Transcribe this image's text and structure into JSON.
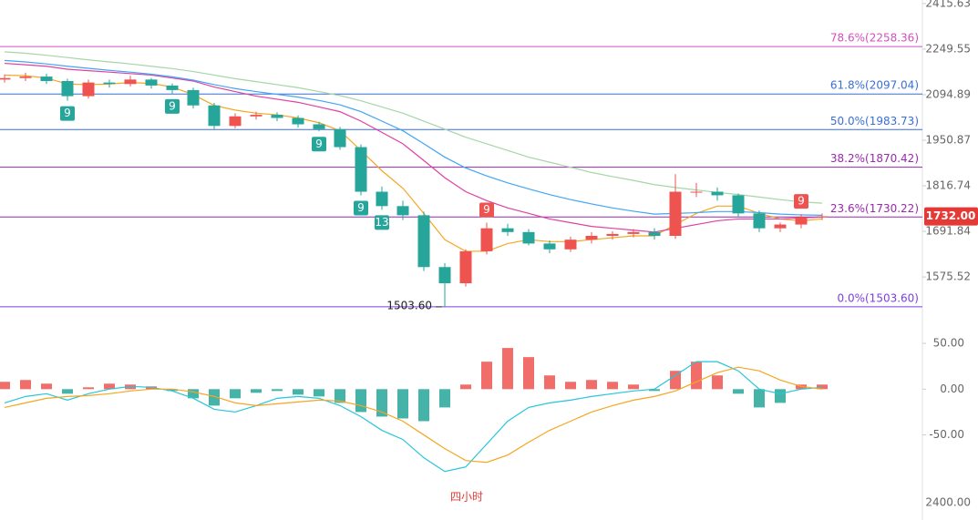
{
  "chart_data": [
    {
      "type": "candlestick",
      "log_scale": true,
      "ylim": [
        1455,
        2429
      ],
      "yticks": [
        2415.63,
        2249.55,
        2094.89,
        1950.87,
        1816.74,
        1691.84,
        1575.52
      ],
      "up_color": "#ef5350",
      "down_color": "#26a69a",
      "open": [
        2145,
        2150,
        2155,
        2140,
        2090,
        2135,
        2130,
        2145,
        2125,
        2110,
        2060,
        1995,
        2025,
        2030,
        2020,
        2000,
        1985,
        1930,
        1800,
        1760,
        1735,
        1600,
        1560,
        1640,
        1700,
        1690,
        1660,
        1645,
        1670,
        1680,
        1685,
        1690,
        1680,
        1800,
        1800,
        1790,
        1740,
        1700,
        1710,
        1730
      ],
      "high": [
        2162,
        2168,
        2165,
        2148,
        2145,
        2145,
        2158,
        2150,
        2132,
        2118,
        2068,
        2035,
        2040,
        2038,
        2028,
        2008,
        1992,
        1938,
        1815,
        1775,
        1745,
        1610,
        1645,
        1715,
        1712,
        1698,
        1668,
        1678,
        1690,
        1692,
        1698,
        1700,
        1850,
        1825,
        1812,
        1795,
        1748,
        1715,
        1738,
        1740
      ],
      "low": [
        2135,
        2140,
        2130,
        2075,
        2082,
        2118,
        2122,
        2115,
        2098,
        2050,
        1985,
        1988,
        2015,
        2010,
        1990,
        1978,
        1922,
        1790,
        1750,
        1722,
        1590,
        1503.6,
        1552,
        1632,
        1680,
        1655,
        1635,
        1638,
        1660,
        1670,
        1676,
        1670,
        1672,
        1785,
        1775,
        1730,
        1690,
        1690,
        1700,
        1722
      ],
      "close": [
        2150,
        2155,
        2140,
        2090,
        2135,
        2130,
        2145,
        2125,
        2110,
        2060,
        1995,
        2025,
        2030,
        2020,
        2000,
        1985,
        1930,
        1800,
        1760,
        1735,
        1600,
        1560,
        1640,
        1700,
        1690,
        1660,
        1645,
        1670,
        1680,
        1685,
        1690,
        1680,
        1800,
        1800,
        1790,
        1740,
        1700,
        1710,
        1730,
        1732
      ],
      "series": [
        {
          "color": "#f5a623",
          "values": [
            2160,
            2158,
            2150,
            2130,
            2128,
            2130,
            2135,
            2132,
            2120,
            2095,
            2060,
            2045,
            2035,
            2030,
            2020,
            2005,
            1980,
            1920,
            1860,
            1810,
            1740,
            1670,
            1640,
            1640,
            1660,
            1670,
            1665,
            1665,
            1670,
            1675,
            1680,
            1680,
            1710,
            1740,
            1760,
            1760,
            1740,
            1725,
            1720,
            1725
          ]
        },
        {
          "color": "#e040a0",
          "values": [
            2200,
            2195,
            2190,
            2180,
            2175,
            2170,
            2165,
            2160,
            2150,
            2140,
            2120,
            2105,
            2090,
            2080,
            2070,
            2055,
            2040,
            2010,
            1975,
            1940,
            1890,
            1840,
            1800,
            1775,
            1755,
            1740,
            1725,
            1715,
            1705,
            1700,
            1695,
            1690,
            1700,
            1710,
            1720,
            1725,
            1725,
            1725,
            1728,
            1730
          ]
        },
        {
          "color": "#42a5f5",
          "values": [
            2210,
            2205,
            2198,
            2190,
            2183,
            2176,
            2170,
            2163,
            2154,
            2143,
            2128,
            2115,
            2105,
            2096,
            2087,
            2076,
            2062,
            2040,
            2010,
            1980,
            1940,
            1900,
            1868,
            1845,
            1825,
            1808,
            1792,
            1778,
            1766,
            1755,
            1746,
            1738,
            1740,
            1742,
            1745,
            1745,
            1742,
            1738,
            1736,
            1735
          ]
        },
        {
          "color": "#a5d6a7",
          "values": [
            2240,
            2235,
            2228,
            2220,
            2212,
            2205,
            2198,
            2190,
            2182,
            2172,
            2160,
            2148,
            2138,
            2128,
            2118,
            2105,
            2092,
            2075,
            2055,
            2035,
            2010,
            1985,
            1960,
            1940,
            1920,
            1900,
            1885,
            1870,
            1855,
            1843,
            1832,
            1820,
            1812,
            1805,
            1798,
            1792,
            1785,
            1778,
            1772,
            1768
          ]
        }
      ],
      "fib_levels": [
        {
          "label": "78.6%(2258.36)",
          "value": 2258.36,
          "color": "#d050c0"
        },
        {
          "label": "61.8%(2097.04)",
          "value": 2097.04,
          "color": "#3a6fd8"
        },
        {
          "label": "50.0%(1983.73)",
          "value": 1983.73,
          "color": "#3a6fd8"
        },
        {
          "label": "38.2%(1870.42)",
          "value": 1870.42,
          "color": "#9c27b0"
        },
        {
          "label": "23.6%(1730.22)",
          "value": 1730.22,
          "color": "#9c27b0"
        },
        {
          "label": "0.0%(1503.60)",
          "value": 1503.6,
          "color": "#7b3fe0"
        }
      ],
      "last_price": {
        "value": 1732,
        "label": "1732.00"
      },
      "low_marker": {
        "value": 1503.6,
        "label": "1503.60"
      },
      "td_labels": [
        "9",
        "9",
        "9",
        "9",
        "13",
        "9",
        "9"
      ],
      "watermark": "四小时"
    },
    {
      "type": "macd",
      "ylim": [
        -137,
        62
      ],
      "yticks": [
        {
          "value": 50,
          "label": "50.00"
        },
        {
          "value": 0,
          "label": "0.00"
        },
        {
          "value": -50,
          "label": "-50.00"
        }
      ],
      "corner_label": "2400.00",
      "up_color": "#ef5350",
      "down_color": "#26a69a",
      "histogram": [
        8,
        10,
        6,
        -5,
        2,
        6,
        5,
        3,
        -2,
        -10,
        -18,
        -10,
        -4,
        -2,
        -6,
        -8,
        -15,
        -25,
        -30,
        -32,
        -35,
        -20,
        5,
        30,
        45,
        35,
        15,
        8,
        10,
        8,
        5,
        -2,
        20,
        30,
        15,
        -5,
        -20,
        -15,
        5,
        5
      ],
      "series": [
        {
          "color": "#26c6da",
          "values": [
            -15,
            -8,
            -5,
            -12,
            -5,
            0,
            3,
            2,
            -2,
            -10,
            -22,
            -25,
            -18,
            -10,
            -8,
            -10,
            -18,
            -30,
            -45,
            -55,
            -75,
            -90,
            -85,
            -60,
            -35,
            -20,
            -15,
            -12,
            -8,
            -5,
            -2,
            0,
            15,
            30,
            30,
            20,
            0,
            -5,
            0,
            2
          ]
        },
        {
          "color": "#f5a623",
          "values": [
            -20,
            -15,
            -10,
            -8,
            -7,
            -5,
            -2,
            0,
            0,
            -3,
            -8,
            -15,
            -18,
            -16,
            -14,
            -12,
            -13,
            -18,
            -25,
            -35,
            -50,
            -65,
            -78,
            -80,
            -72,
            -58,
            -45,
            -35,
            -25,
            -18,
            -12,
            -8,
            -2,
            8,
            18,
            24,
            20,
            10,
            3,
            0
          ]
        }
      ]
    }
  ]
}
